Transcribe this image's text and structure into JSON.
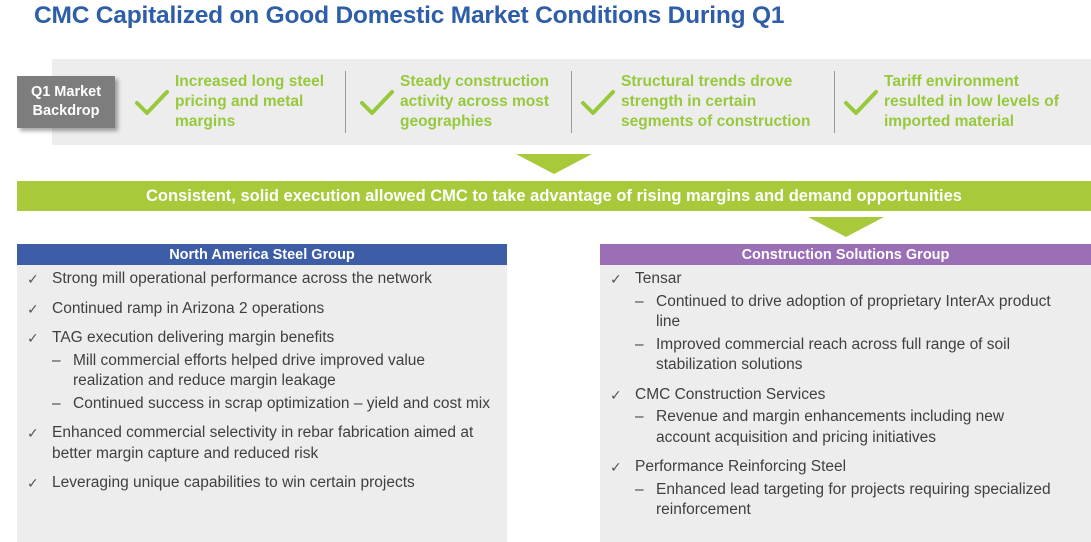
{
  "title": "CMC Capitalized on Good Domestic Market Conditions During Q1",
  "backdrop": {
    "label": "Q1 Market Backdrop",
    "check_icon": "check-icon",
    "items": [
      {
        "text": "Increased long steel pricing and metal margins"
      },
      {
        "text": "Steady construction activity across most geographies"
      },
      {
        "text": "Structural trends drove strength in certain segments of construction"
      },
      {
        "text": "Tariff environment resulted in low levels of imported material"
      }
    ]
  },
  "banner": "Consistent, solid execution allowed CMC to take advantage of rising margins and demand opportunities",
  "colors": {
    "title": "#2f5ea8",
    "green": "#a8c93a",
    "check_green": "#97c93c",
    "na_header": "#3d5ea6",
    "csg_header": "#9b6fb5",
    "panel_bg": "#ededed"
  },
  "north_america": {
    "header": "North America Steel Group",
    "items": [
      {
        "text": "Strong mill operational performance across the network",
        "subs": []
      },
      {
        "text": "Continued ramp in Arizona 2 operations",
        "subs": []
      },
      {
        "text": "TAG execution delivering margin benefits",
        "subs": [
          "Mill commercial efforts helped drive improved value realization and reduce margin leakage",
          "Continued success in scrap optimization – yield and cost mix"
        ]
      },
      {
        "text": "Enhanced commercial selectivity in rebar fabrication aimed at better margin capture and reduced risk",
        "subs": []
      },
      {
        "text": "Leveraging unique capabilities to win certain projects",
        "subs": []
      }
    ]
  },
  "construction": {
    "header": "Construction Solutions Group",
    "items": [
      {
        "text": "Tensar",
        "subs": [
          "Continued to drive adoption of proprietary InterAx product line",
          "Improved commercial reach across full range of soil stabilization solutions"
        ]
      },
      {
        "text": "CMC Construction Services",
        "subs": [
          "Revenue and margin enhancements including new account acquisition and pricing initiatives"
        ]
      },
      {
        "text": "Performance Reinforcing Steel",
        "subs": [
          "Enhanced lead targeting for projects requiring specialized reinforcement"
        ]
      }
    ]
  },
  "bullet_mark": "✓",
  "sub_mark": "–"
}
